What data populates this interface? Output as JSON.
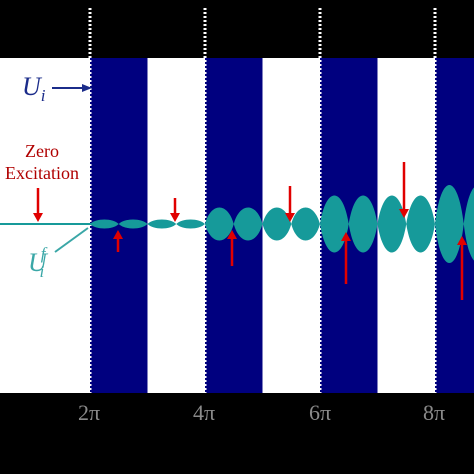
{
  "labels": {
    "ui_base": "U",
    "ui_sub": "i",
    "uif_base": "U",
    "uif_sub": "i",
    "uif_sup": "f",
    "zero_line1": "Zero",
    "zero_line2": "Excitation"
  },
  "ticks": [
    "2π",
    "4π",
    "6π",
    "8π"
  ],
  "colors": {
    "background": "#000000",
    "band_dark": "#00007f",
    "band_light": "#ffffff",
    "wave": "#169a9a",
    "arrow": "#e00000",
    "dotted_line": "#ffffff"
  },
  "envelope_amplitudes": [
    6,
    6,
    22,
    22,
    38,
    38,
    52,
    52,
    60
  ]
}
